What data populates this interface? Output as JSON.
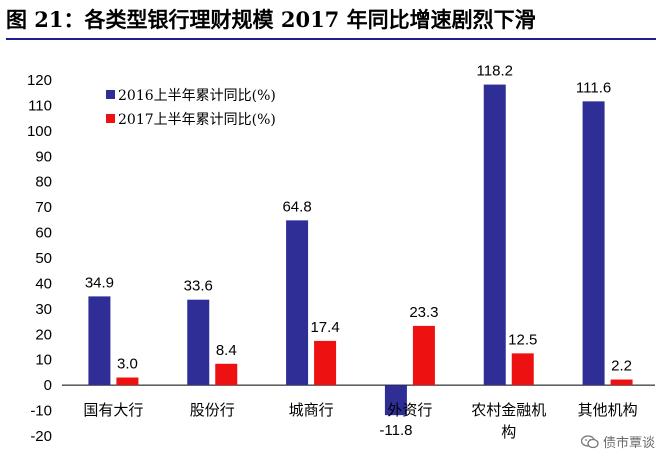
{
  "header": {
    "title": "图 21：各类型银行理财规模 2017 年同比增速剧烈下滑"
  },
  "watermark": {
    "text": "债市覃谈",
    "icon": "wechat-icon"
  },
  "colors": {
    "series_2016": "#2e2e96",
    "series_2017": "#ee1111",
    "title_rule": "#1f1f8f"
  },
  "chart_data": {
    "type": "bar",
    "categories": [
      "国有大行",
      "股份行",
      "城商行",
      "外资行",
      "农村金融机构",
      "其他机构"
    ],
    "category_lines": [
      [
        "国有大行"
      ],
      [
        "股份行"
      ],
      [
        "城商行"
      ],
      [
        "外资行"
      ],
      [
        "农村金融机",
        "构"
      ],
      [
        "其他机构"
      ]
    ],
    "series": [
      {
        "name": "2016上半年累计同比(%)",
        "values": [
          34.9,
          33.6,
          64.8,
          -11.8,
          118.2,
          111.6
        ],
        "labels": [
          "34.9",
          "33.6",
          "64.8",
          "-11.8",
          "118.2",
          "111.6"
        ]
      },
      {
        "name": "2017上半年累计同比(%)",
        "values": [
          3.0,
          8.4,
          17.4,
          23.3,
          12.5,
          2.2
        ],
        "labels": [
          "3.0",
          "8.4",
          "17.4",
          "23.3",
          "12.5",
          "2.2"
        ]
      }
    ],
    "ylim": [
      -20,
      120
    ],
    "yticks": [
      "-20",
      "-10",
      "0",
      "10",
      "20",
      "30",
      "40",
      "50",
      "60",
      "70",
      "80",
      "90",
      "100",
      "110",
      "120"
    ],
    "grid": false,
    "legend_position": "top-left",
    "title": "",
    "xlabel": "",
    "ylabel": ""
  }
}
